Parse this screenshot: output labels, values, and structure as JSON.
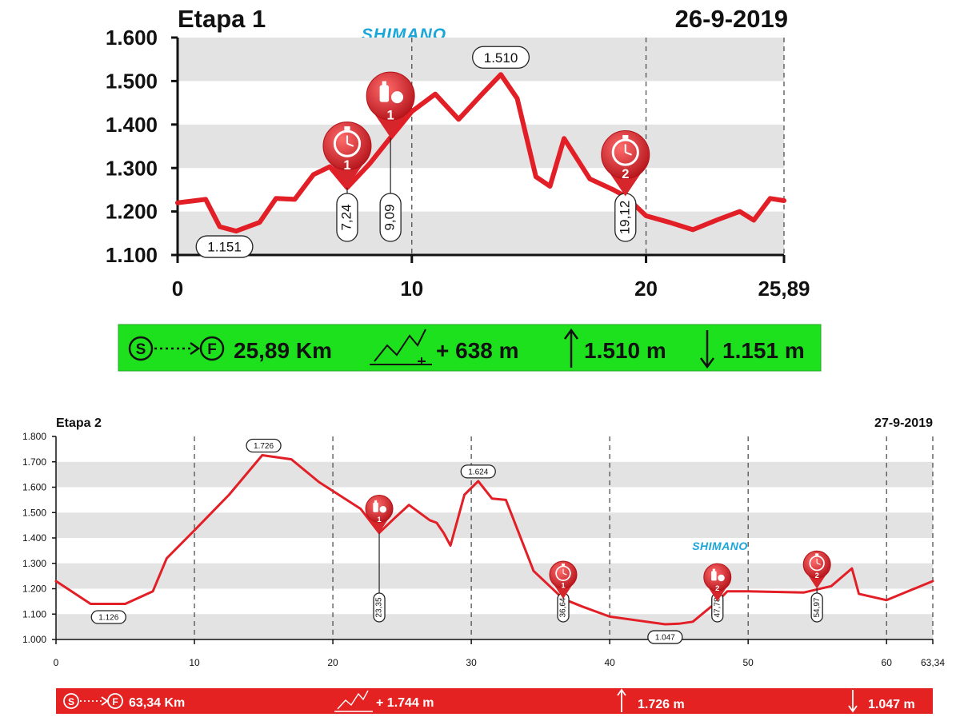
{
  "colors": {
    "line": "#e21f26",
    "band": "#e3e3e3",
    "marker": "#d7262b",
    "brand": "#1ba6d9",
    "summary1_bg": "#1ee11e",
    "summary2_bg": "#e42222"
  },
  "brand_label": "SHIMANO",
  "chart_data": [
    {
      "type": "line",
      "title": "Etapa 1",
      "date": "26-9-2019",
      "ylim": [
        1100,
        1600
      ],
      "xlim": [
        0,
        25.89
      ],
      "y_ticks": [
        "1.100",
        "1.200",
        "1.300",
        "1.400",
        "1.500",
        "1.600"
      ],
      "x_ticks": [
        "0",
        "10",
        "20",
        "25,89"
      ],
      "series": [
        {
          "x": [
            0,
            1.2,
            1.8,
            2.5,
            3.5,
            4.2,
            5.0,
            5.8,
            6.5,
            7.24,
            8.2,
            9.09,
            10.0,
            11.0,
            12.0,
            13.0,
            13.8,
            14.5,
            15.3,
            15.9,
            16.5,
            17.6,
            18.6,
            19.12,
            20.0,
            21.0,
            22.0,
            23.0,
            24.0,
            24.6,
            25.3,
            25.89
          ],
          "y": [
            1220,
            1228,
            1165,
            1155,
            1175,
            1230,
            1228,
            1285,
            1303,
            1255,
            1310,
            1370,
            1430,
            1470,
            1412,
            1470,
            1515,
            1460,
            1280,
            1258,
            1368,
            1275,
            1250,
            1235,
            1190,
            1175,
            1158,
            1180,
            1200,
            1180,
            1230,
            1225
          ]
        }
      ],
      "markers": [
        {
          "kind": "clock",
          "num": "1",
          "x": 7.24,
          "y": 1255,
          "label": "7,24"
        },
        {
          "kind": "food",
          "num": "1",
          "x": 9.09,
          "y": 1370,
          "label": "9,09"
        },
        {
          "kind": "clock",
          "num": "2",
          "x": 19.12,
          "y": 1235,
          "label": "19,12"
        }
      ],
      "annotations": [
        {
          "text": "1.510",
          "x": 13.8,
          "y": 1515
        },
        {
          "text": "1.151",
          "x": 2.0,
          "y": 1155
        }
      ],
      "summary": {
        "distance": "25,89 Km",
        "gain": "+ 638 m",
        "max": "1.510 m",
        "min": "1.151 m"
      }
    },
    {
      "type": "line",
      "title": "Etapa 2",
      "date": "27-9-2019",
      "ylim": [
        1000,
        1800
      ],
      "xlim": [
        0,
        63.34
      ],
      "y_ticks": [
        "1.000",
        "1.100",
        "1.200",
        "1.300",
        "1.400",
        "1.500",
        "1.600",
        "1.700",
        "1.800"
      ],
      "x_ticks": [
        "0",
        "10",
        "20",
        "30",
        "40",
        "50",
        "60",
        "63,34"
      ],
      "series": [
        {
          "x": [
            0,
            2.5,
            5.0,
            7.0,
            8.0,
            10.0,
            12.5,
            14.9,
            17.0,
            19.0,
            21.0,
            22.0,
            23.35,
            24.5,
            25.5,
            26.5,
            27.0,
            27.5,
            28.0,
            28.5,
            29.5,
            30.5,
            31.5,
            32.5,
            34.5,
            36.64,
            38.0,
            40.0,
            42.0,
            44.0,
            45.0,
            46.0,
            47.78,
            48.5,
            50.0,
            54.0,
            56.0,
            57.5,
            58.0,
            60.0,
            63.34
          ],
          "y": [
            1230,
            1140,
            1140,
            1190,
            1320,
            1430,
            1570,
            1726,
            1710,
            1620,
            1550,
            1515,
            1420,
            1480,
            1530,
            1490,
            1470,
            1460,
            1420,
            1370,
            1570,
            1624,
            1555,
            1550,
            1270,
            1160,
            1130,
            1090,
            1075,
            1060,
            1062,
            1070,
            1150,
            1190,
            1190,
            1185,
            1210,
            1280,
            1180,
            1155,
            1230
          ]
        }
      ],
      "markers": [
        {
          "kind": "food",
          "num": "1",
          "x": 23.35,
          "y": 1420,
          "label": "23,35"
        },
        {
          "kind": "clock",
          "num": "1",
          "x": 36.64,
          "y": 1160,
          "label": "36,64"
        },
        {
          "kind": "food",
          "num": "2",
          "x": 47.78,
          "y": 1150,
          "label": "47,78"
        },
        {
          "kind": "clock",
          "num": "2",
          "x": 54.97,
          "y": 1200,
          "label": "54,97"
        }
      ],
      "annotations": [
        {
          "text": "1.726",
          "x": 15.0,
          "y": 1726
        },
        {
          "text": "1.624",
          "x": 30.5,
          "y": 1624
        },
        {
          "text": "1.126",
          "x": 3.8,
          "y": 1126
        },
        {
          "text": "1.047",
          "x": 44.0,
          "y": 1047
        }
      ],
      "summary": {
        "distance": "63,34 Km",
        "gain": "+ 1.744 m",
        "max": "1.726 m",
        "min": "1.047 m"
      }
    }
  ]
}
